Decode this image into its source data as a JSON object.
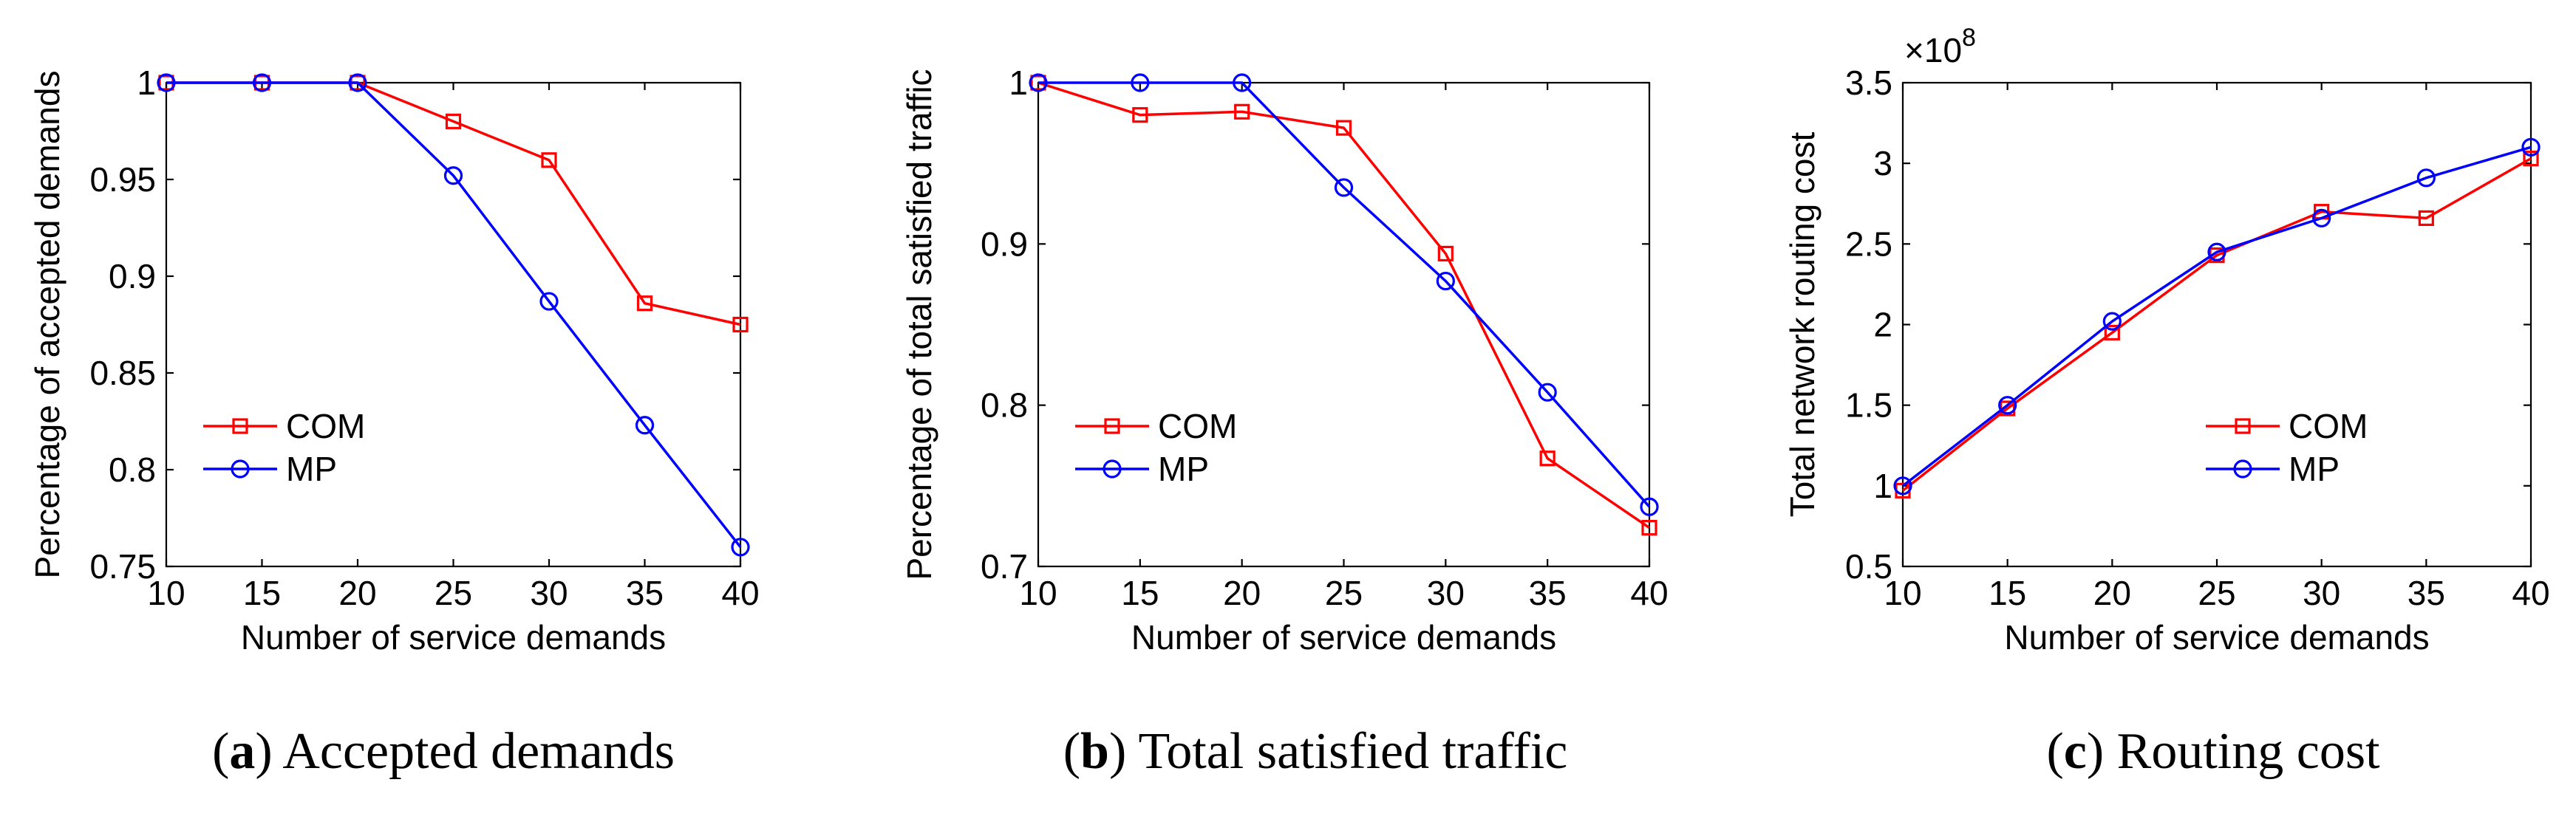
{
  "chart_data": [
    {
      "type": "line",
      "id": "a",
      "caption_letter": "a",
      "caption_text": "Accepted demands",
      "xlabel": "Number of service demands",
      "ylabel": "Percentage of accepted demands",
      "x": [
        10,
        15,
        20,
        25,
        30,
        35,
        40
      ],
      "xlim": [
        10,
        40
      ],
      "ylim": [
        0.75,
        1.0
      ],
      "xticks": [
        "10",
        "15",
        "20",
        "25",
        "30",
        "35",
        "40"
      ],
      "yticks": [
        0.75,
        0.8,
        0.85,
        0.9,
        0.95,
        1.0
      ],
      "ytick_labels": [
        "0.75",
        "0.8",
        "0.85",
        "0.9",
        "0.95",
        "1"
      ],
      "y_multiplier": "",
      "legend_position": "bottom-left",
      "series": [
        {
          "name": "COM",
          "color": "#ff0000",
          "marker": "square",
          "values": [
            1.0,
            1.0,
            1.0,
            0.98,
            0.96,
            0.886,
            0.875
          ]
        },
        {
          "name": "MP",
          "color": "#0000ff",
          "marker": "circle",
          "values": [
            1.0,
            1.0,
            1.0,
            0.952,
            0.887,
            0.823,
            0.76
          ]
        }
      ]
    },
    {
      "type": "line",
      "id": "b",
      "caption_letter": "b",
      "caption_text": "Total satisfied traffic",
      "xlabel": "Number of service demands",
      "ylabel": "Percentage of total satisfied traffic",
      "x": [
        10,
        15,
        20,
        25,
        30,
        35,
        40
      ],
      "xlim": [
        10,
        40
      ],
      "ylim": [
        0.7,
        1.0
      ],
      "xticks": [
        "10",
        "15",
        "20",
        "25",
        "30",
        "35",
        "40"
      ],
      "yticks": [
        0.7,
        0.8,
        0.9,
        1.0
      ],
      "ytick_labels": [
        "0.7",
        "0.8",
        "0.9",
        "1"
      ],
      "y_multiplier": "",
      "legend_position": "bottom-left",
      "series": [
        {
          "name": "COM",
          "color": "#ff0000",
          "marker": "square",
          "values": [
            1.0,
            0.98,
            0.982,
            0.972,
            0.894,
            0.767,
            0.724
          ]
        },
        {
          "name": "MP",
          "color": "#0000ff",
          "marker": "circle",
          "values": [
            1.0,
            1.0,
            1.0,
            0.935,
            0.877,
            0.808,
            0.737
          ]
        }
      ]
    },
    {
      "type": "line",
      "id": "c",
      "caption_letter": "c",
      "caption_text": "Routing cost",
      "xlabel": "Number of service demands",
      "ylabel": "Total network routing cost",
      "x": [
        10,
        15,
        20,
        25,
        30,
        35,
        40
      ],
      "xlim": [
        10,
        40
      ],
      "ylim": [
        0.5,
        3.5
      ],
      "xticks": [
        "10",
        "15",
        "20",
        "25",
        "30",
        "35",
        "40"
      ],
      "yticks": [
        0.5,
        1.0,
        1.5,
        2.0,
        2.5,
        3.0,
        3.5
      ],
      "ytick_labels": [
        "0.5",
        "1",
        "1.5",
        "2",
        "2.5",
        "3",
        "3.5"
      ],
      "y_multiplier": "×10",
      "y_multiplier_exp": "8",
      "legend_position": "bottom-right",
      "series": [
        {
          "name": "COM",
          "color": "#ff0000",
          "marker": "square",
          "values": [
            0.97,
            1.48,
            1.95,
            2.43,
            2.7,
            2.66,
            3.03
          ]
        },
        {
          "name": "MP",
          "color": "#0000ff",
          "marker": "circle",
          "values": [
            1.0,
            1.5,
            2.02,
            2.45,
            2.66,
            2.91,
            3.1
          ]
        }
      ]
    }
  ]
}
